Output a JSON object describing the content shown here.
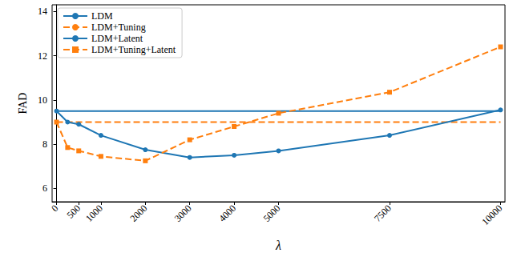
{
  "chart_data": {
    "type": "line",
    "x_label": "λ",
    "y_label": "FAD",
    "x": [
      0,
      250,
      500,
      1000,
      2000,
      3000,
      4000,
      5000,
      7500,
      10000
    ],
    "series": [
      {
        "name": "LDM",
        "color": "#1f77b4",
        "line_style": "solid",
        "marker": "none",
        "values": [
          9.5,
          9.5,
          9.5,
          9.5,
          9.5,
          9.5,
          9.5,
          9.5,
          9.5,
          9.5
        ]
      },
      {
        "name": "LDM+Tuning",
        "color": "#ff7f0e",
        "line_style": "dashed",
        "marker": "none",
        "values": [
          9.0,
          9.0,
          9.0,
          9.0,
          9.0,
          9.0,
          9.0,
          9.0,
          9.0,
          9.0
        ]
      },
      {
        "name": "LDM+Latent",
        "color": "#1f77b4",
        "line_style": "solid",
        "marker": "circle",
        "values": [
          9.5,
          9.0,
          8.9,
          8.4,
          7.75,
          7.4,
          7.5,
          7.7,
          8.4,
          9.55
        ]
      },
      {
        "name": "LDM+Tuning+Latent",
        "color": "#ff7f0e",
        "line_style": "dashed",
        "marker": "square",
        "values": [
          9.0,
          7.85,
          7.7,
          7.45,
          7.25,
          8.2,
          8.8,
          9.4,
          10.35,
          12.4
        ]
      }
    ],
    "xlim": [
      -100,
      10100
    ],
    "xticks": [
      0,
      500,
      1000,
      2000,
      3000,
      4000,
      5000,
      7500,
      10000
    ],
    "ylim": [
      5.4,
      14.3
    ],
    "yticks": [
      6,
      8,
      10,
      12,
      14
    ],
    "grid": false,
    "legend": "upper left"
  }
}
